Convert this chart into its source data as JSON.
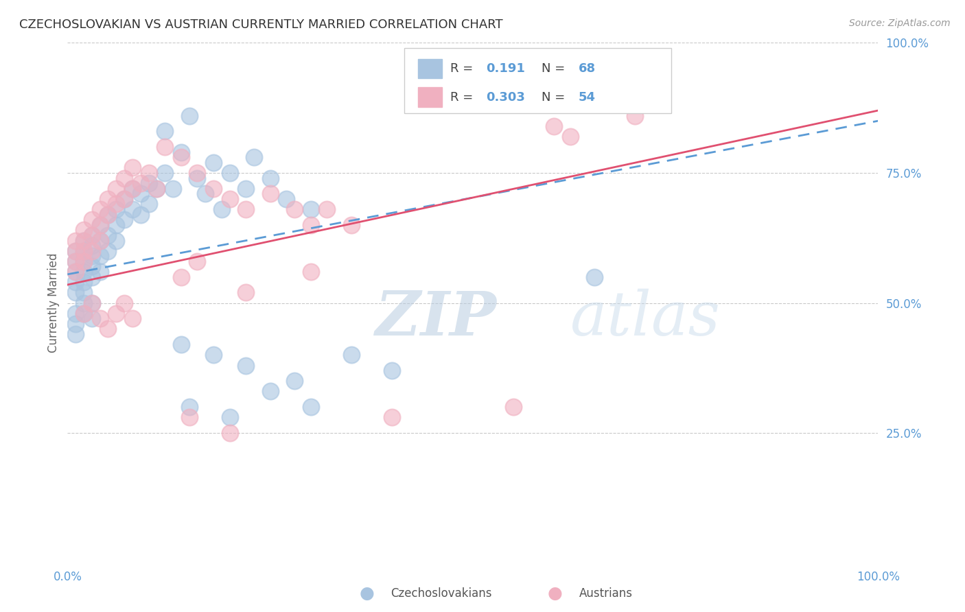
{
  "title": "CZECHOSLOVAKIAN VS AUSTRIAN CURRENTLY MARRIED CORRELATION CHART",
  "source": "Source: ZipAtlas.com",
  "ylabel": "Currently Married",
  "legend_blue_r": "0.191",
  "legend_blue_n": "68",
  "legend_pink_r": "0.303",
  "legend_pink_n": "54",
  "blue_color": "#a8c4e0",
  "pink_color": "#f0b0c0",
  "blue_line_color": "#5b9bd5",
  "pink_line_color": "#e05070",
  "watermark_zip": "ZIP",
  "watermark_atlas": "atlas",
  "background_color": "#ffffff",
  "grid_color": "#c8c8c8",
  "blue_x": [
    0.01,
    0.01,
    0.01,
    0.01,
    0.01,
    0.02,
    0.02,
    0.02,
    0.02,
    0.02,
    0.02,
    0.03,
    0.03,
    0.03,
    0.03,
    0.03,
    0.04,
    0.04,
    0.04,
    0.04,
    0.05,
    0.05,
    0.05,
    0.06,
    0.06,
    0.06,
    0.07,
    0.07,
    0.08,
    0.08,
    0.09,
    0.09,
    0.1,
    0.1,
    0.11,
    0.12,
    0.12,
    0.13,
    0.14,
    0.15,
    0.16,
    0.17,
    0.18,
    0.19,
    0.2,
    0.22,
    0.23,
    0.25,
    0.27,
    0.3,
    0.14,
    0.18,
    0.22,
    0.28,
    0.35,
    0.4,
    0.15,
    0.2,
    0.25,
    0.3,
    0.01,
    0.01,
    0.01,
    0.02,
    0.02,
    0.03,
    0.03,
    0.65
  ],
  "blue_y": [
    0.6,
    0.58,
    0.56,
    0.54,
    0.52,
    0.62,
    0.6,
    0.58,
    0.56,
    0.54,
    0.52,
    0.63,
    0.61,
    0.59,
    0.57,
    0.55,
    0.65,
    0.62,
    0.59,
    0.56,
    0.67,
    0.63,
    0.6,
    0.68,
    0.65,
    0.62,
    0.7,
    0.66,
    0.72,
    0.68,
    0.71,
    0.67,
    0.73,
    0.69,
    0.72,
    0.83,
    0.75,
    0.72,
    0.79,
    0.86,
    0.74,
    0.71,
    0.77,
    0.68,
    0.75,
    0.72,
    0.78,
    0.74,
    0.7,
    0.68,
    0.42,
    0.4,
    0.38,
    0.35,
    0.4,
    0.37,
    0.3,
    0.28,
    0.33,
    0.3,
    0.48,
    0.46,
    0.44,
    0.5,
    0.48,
    0.5,
    0.47,
    0.55
  ],
  "pink_x": [
    0.01,
    0.01,
    0.01,
    0.01,
    0.02,
    0.02,
    0.02,
    0.02,
    0.03,
    0.03,
    0.03,
    0.04,
    0.04,
    0.04,
    0.05,
    0.05,
    0.06,
    0.06,
    0.07,
    0.07,
    0.08,
    0.08,
    0.09,
    0.1,
    0.11,
    0.12,
    0.14,
    0.16,
    0.18,
    0.2,
    0.22,
    0.25,
    0.28,
    0.3,
    0.32,
    0.35,
    0.14,
    0.16,
    0.22,
    0.3,
    0.02,
    0.03,
    0.04,
    0.05,
    0.06,
    0.07,
    0.08,
    0.6,
    0.62,
    0.7,
    0.15,
    0.2,
    0.4,
    0.55
  ],
  "pink_y": [
    0.62,
    0.6,
    0.58,
    0.56,
    0.64,
    0.62,
    0.6,
    0.58,
    0.66,
    0.63,
    0.6,
    0.68,
    0.65,
    0.62,
    0.7,
    0.67,
    0.72,
    0.69,
    0.74,
    0.7,
    0.76,
    0.72,
    0.73,
    0.75,
    0.72,
    0.8,
    0.78,
    0.75,
    0.72,
    0.7,
    0.68,
    0.71,
    0.68,
    0.65,
    0.68,
    0.65,
    0.55,
    0.58,
    0.52,
    0.56,
    0.48,
    0.5,
    0.47,
    0.45,
    0.48,
    0.5,
    0.47,
    0.84,
    0.82,
    0.86,
    0.28,
    0.25,
    0.28,
    0.3
  ]
}
